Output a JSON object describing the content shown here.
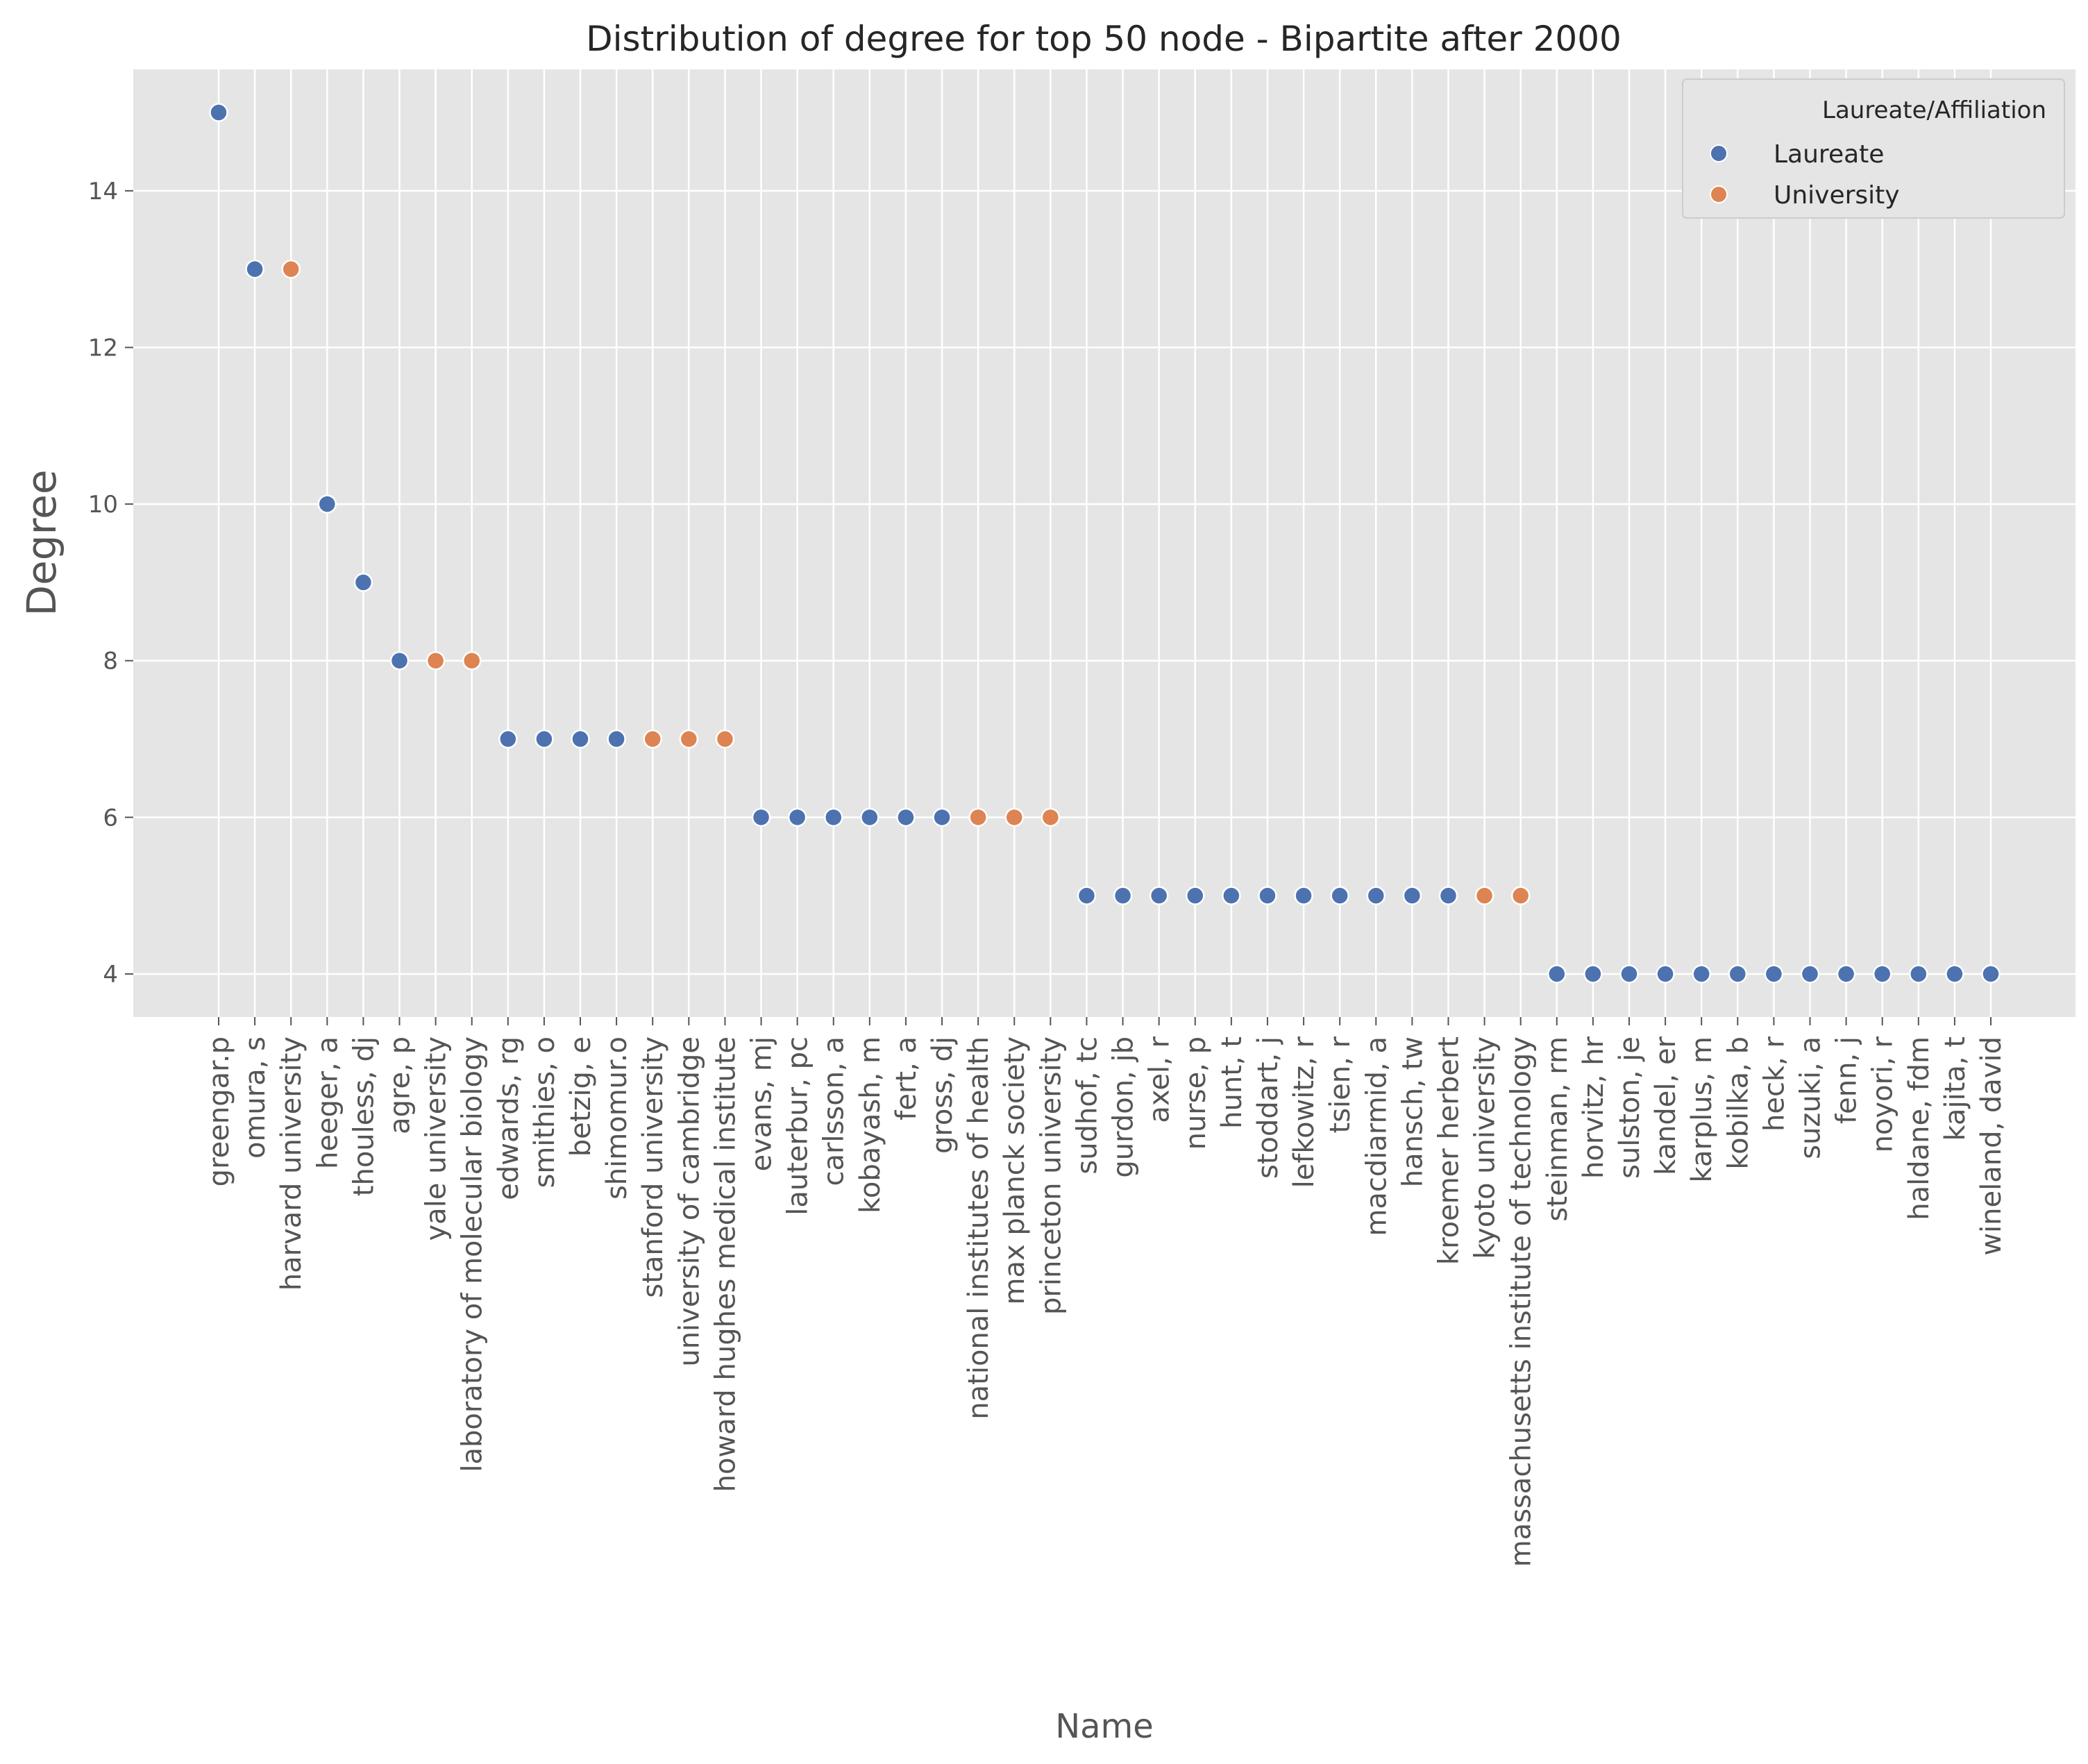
{
  "chart_data": {
    "type": "scatter",
    "title": "Distribution of degree for top 50 node - Bipartite after 2000",
    "xlabel": "Name",
    "ylabel": "Degree",
    "ylim": [
      3.45,
      15.55
    ],
    "yticks": [
      4,
      6,
      8,
      10,
      12,
      14
    ],
    "grid": true,
    "legend": {
      "title": "Laureate/Affiliation",
      "placement": "top-right",
      "entries": [
        {
          "name": "Laureate",
          "color": "#4c72b0"
        },
        {
          "name": "University",
          "color": "#dd8452"
        }
      ]
    },
    "colors": {
      "Laureate": "#4c72b0",
      "University": "#dd8452",
      "background": "#e5e5e5",
      "grid": "#ffffff"
    },
    "categories": [
      "greengar.p",
      "omura, s",
      "harvard university",
      "heeger, a",
      "thouless, dj",
      "agre, p",
      "yale university",
      "laboratory of molecular biology",
      "edwards, rg",
      "smithies, o",
      "betzig, e",
      "shimomur.o",
      "stanford university",
      "university of cambridge",
      "howard hughes medical institute",
      "evans, mj",
      "lauterbur, pc",
      "carlsson, a",
      "kobayash, m",
      "fert, a",
      "gross, dj",
      "national institutes of health",
      "max planck society",
      "princeton university",
      "sudhof, tc",
      "gurdon, jb",
      "axel, r",
      "nurse, p",
      "hunt, t",
      "stoddart, j",
      "lefkowitz, r",
      "tsien, r",
      "macdiarmid, a",
      "hansch, tw",
      "kroemer herbert",
      "kyoto university",
      "massachusetts institute of technology",
      "steinman, rm",
      "horvitz, hr",
      "sulston, je",
      "kandel, er",
      "karplus, m",
      "kobilka, b",
      "heck, r",
      "suzuki, a",
      "fenn, j",
      "noyori, r",
      "haldane, fdm",
      "kajita, t",
      "wineland, david"
    ],
    "values": [
      15,
      13,
      13,
      10,
      9,
      8,
      8,
      8,
      7,
      7,
      7,
      7,
      7,
      7,
      7,
      6,
      6,
      6,
      6,
      6,
      6,
      6,
      6,
      6,
      5,
      5,
      5,
      5,
      5,
      5,
      5,
      5,
      5,
      5,
      5,
      5,
      5,
      4,
      4,
      4,
      4,
      4,
      4,
      4,
      4,
      4,
      4,
      4,
      4,
      4
    ],
    "groups": [
      "Laureate",
      "Laureate",
      "University",
      "Laureate",
      "Laureate",
      "Laureate",
      "University",
      "University",
      "Laureate",
      "Laureate",
      "Laureate",
      "Laureate",
      "University",
      "University",
      "University",
      "Laureate",
      "Laureate",
      "Laureate",
      "Laureate",
      "Laureate",
      "Laureate",
      "University",
      "University",
      "University",
      "Laureate",
      "Laureate",
      "Laureate",
      "Laureate",
      "Laureate",
      "Laureate",
      "Laureate",
      "Laureate",
      "Laureate",
      "Laureate",
      "Laureate",
      "University",
      "University",
      "Laureate",
      "Laureate",
      "Laureate",
      "Laureate",
      "Laureate",
      "Laureate",
      "Laureate",
      "Laureate",
      "Laureate",
      "Laureate",
      "Laureate",
      "Laureate",
      "Laureate"
    ]
  }
}
